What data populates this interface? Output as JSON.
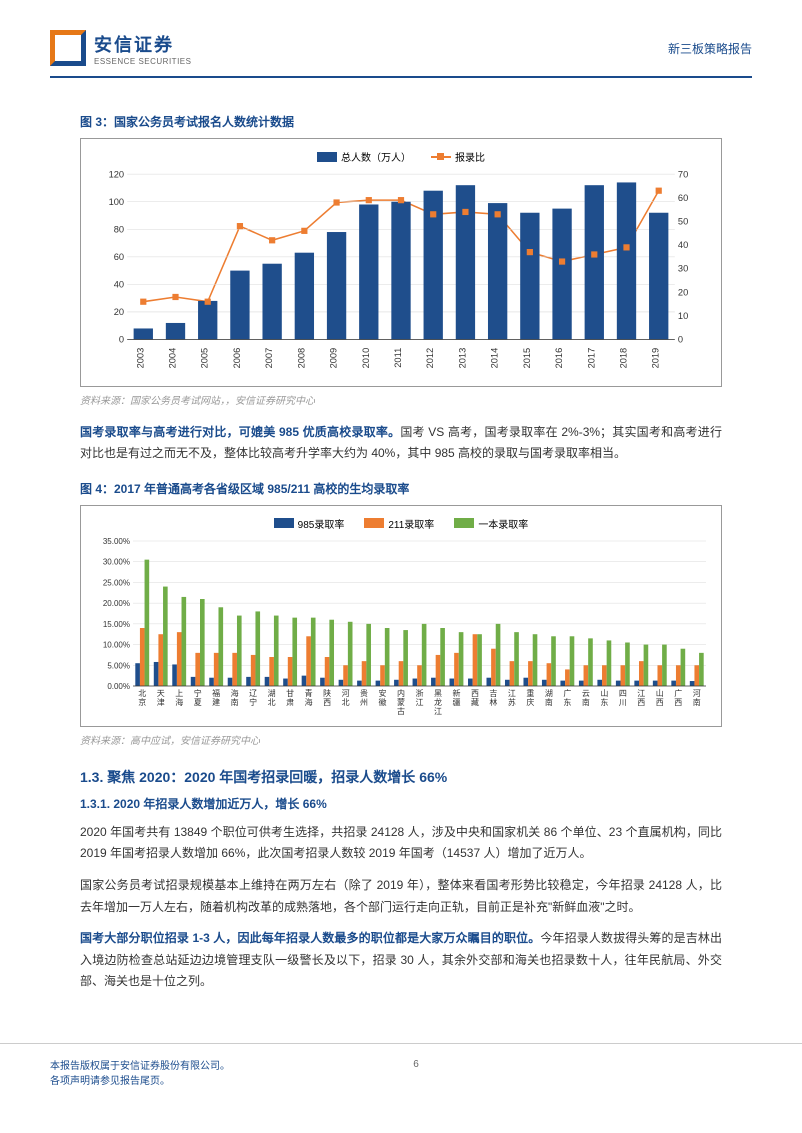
{
  "header": {
    "logo_cn": "安信证券",
    "logo_en": "ESSENCE SECURITIES",
    "doc_type": "新三板策略报告"
  },
  "fig3": {
    "title": "图 3：国家公务员考试报名人数统计数据",
    "source": "资料来源：国家公务员考试网站，，安信证券研究中心",
    "legend_bar": "总人数（万人）",
    "legend_line": "报录比",
    "bar_color": "#1f4e8c",
    "line_color": "#ed7d31",
    "categories": [
      "2003",
      "2004",
      "2005",
      "2006",
      "2007",
      "2008",
      "2009",
      "2010",
      "2011",
      "2012",
      "2013",
      "2014",
      "2015",
      "2016",
      "2017",
      "2018",
      "2019"
    ],
    "bar_values": [
      8,
      12,
      28,
      50,
      55,
      63,
      78,
      98,
      100,
      108,
      112,
      99,
      92,
      95,
      112,
      114,
      92
    ],
    "line_values": [
      16,
      18,
      16,
      48,
      42,
      46,
      58,
      59,
      59,
      53,
      54,
      53,
      37,
      33,
      36,
      39,
      63
    ],
    "y1_ticks": [
      0,
      20,
      40,
      60,
      80,
      100,
      120
    ],
    "y2_ticks": [
      0,
      10,
      20,
      30,
      40,
      50,
      60,
      70
    ],
    "bg_color": "#ffffff",
    "grid_color": "#d9d9d9"
  },
  "para1": {
    "lead": "国考录取率与高考进行对比，可媲美 985 优质高校录取率。",
    "text": "国考 VS 高考，国考录取率在 2%-3%；其实国考和高考进行对比也是有过之而无不及，整体比较高考升学率大约为 40%，其中 985 高校的录取与国考录取率相当。"
  },
  "fig4": {
    "title": "图 4：2017 年普通高考各省级区域 985/211 高校的生均录取率",
    "source": "资料来源：高中应试，安信证券研究中心",
    "legend_985": "985录取率",
    "legend_211": "211录取率",
    "legend_1": "一本录取率",
    "color_985": "#1f4e8c",
    "color_211": "#ed7d31",
    "color_1": "#70ad47",
    "categories": [
      "北京",
      "天津",
      "上海",
      "宁夏",
      "福建",
      "海南",
      "辽宁",
      "湖北",
      "甘肃",
      "青海",
      "陕西",
      "河北",
      "贵州",
      "安徽",
      "内蒙古",
      "浙江",
      "黑龙江",
      "新疆",
      "西藏",
      "吉林",
      "江苏",
      "重庆",
      "湖南",
      "广东",
      "云南",
      "山东",
      "四川",
      "江西",
      "山西",
      "广西",
      "河南"
    ],
    "v985": [
      5.5,
      5.8,
      5.2,
      2.2,
      2.0,
      2.0,
      2.2,
      2.2,
      1.8,
      2.5,
      2.0,
      1.5,
      1.3,
      1.3,
      1.5,
      1.8,
      2.0,
      1.8,
      1.8,
      2.0,
      1.5,
      2.0,
      1.5,
      1.3,
      1.3,
      1.5,
      1.3,
      1.3,
      1.3,
      1.3,
      1.2
    ],
    "v211": [
      14,
      12.5,
      13,
      8,
      8,
      8,
      7.5,
      7,
      7,
      12,
      7,
      5,
      6,
      5,
      6,
      5,
      7.5,
      8,
      12.5,
      9,
      6,
      6,
      5.5,
      4,
      5,
      5,
      5,
      6,
      5,
      5,
      5
    ],
    "v1": [
      30.5,
      24,
      21.5,
      21,
      19,
      17,
      18,
      17,
      16.5,
      16.5,
      16,
      15.5,
      15,
      14,
      13.5,
      15,
      14,
      13,
      12.5,
      15,
      13,
      12.5,
      12,
      12,
      11.5,
      11,
      10.5,
      10,
      10,
      9,
      8
    ],
    "y_ticks": [
      "0.00%",
      "5.00%",
      "10.00%",
      "15.00%",
      "20.00%",
      "25.00%",
      "30.00%",
      "35.00%"
    ],
    "bg_color": "#ffffff",
    "grid_color": "#d9d9d9"
  },
  "section13": {
    "h2": "1.3. 聚焦 2020：2020 年国考招录回暖，招录人数增长 66%",
    "h3": "1.3.1. 2020 年招录人数增加近万人，增长 66%",
    "p1": "2020 年国考共有 13849 个职位可供考生选择，共招录 24128 人，涉及中央和国家机关 86 个单位、23 个直属机构，同比 2019 年国考招录人数增加 66%，此次国考招录人数较 2019 年国考（14537 人）增加了近万人。",
    "p2": "国家公务员考试招录规模基本上维持在两万左右（除了 2019 年），整体来看国考形势比较稳定，今年招录 24128 人，比去年增加一万人左右，随着机构改革的成熟落地，各个部门运行走向正轨，目前正是补充\"新鲜血液\"之时。",
    "p3_lead": "国考大部分职位招录 1-3 人，因此每年招录人数最多的职位都是大家万众瞩目的职位。",
    "p3_rest": "今年招录人数拔得头筹的是吉林出入境边防检查总站延边边境管理支队一级警长及以下，招录 30 人，其余外交部和海关也招录数十人，往年民航局、外交部、海关也是十位之列。"
  },
  "footer": {
    "line1": "本报告版权属于安信证券股份有限公司。",
    "line2": "各项声明请参见报告尾页。",
    "page_num": "6"
  }
}
